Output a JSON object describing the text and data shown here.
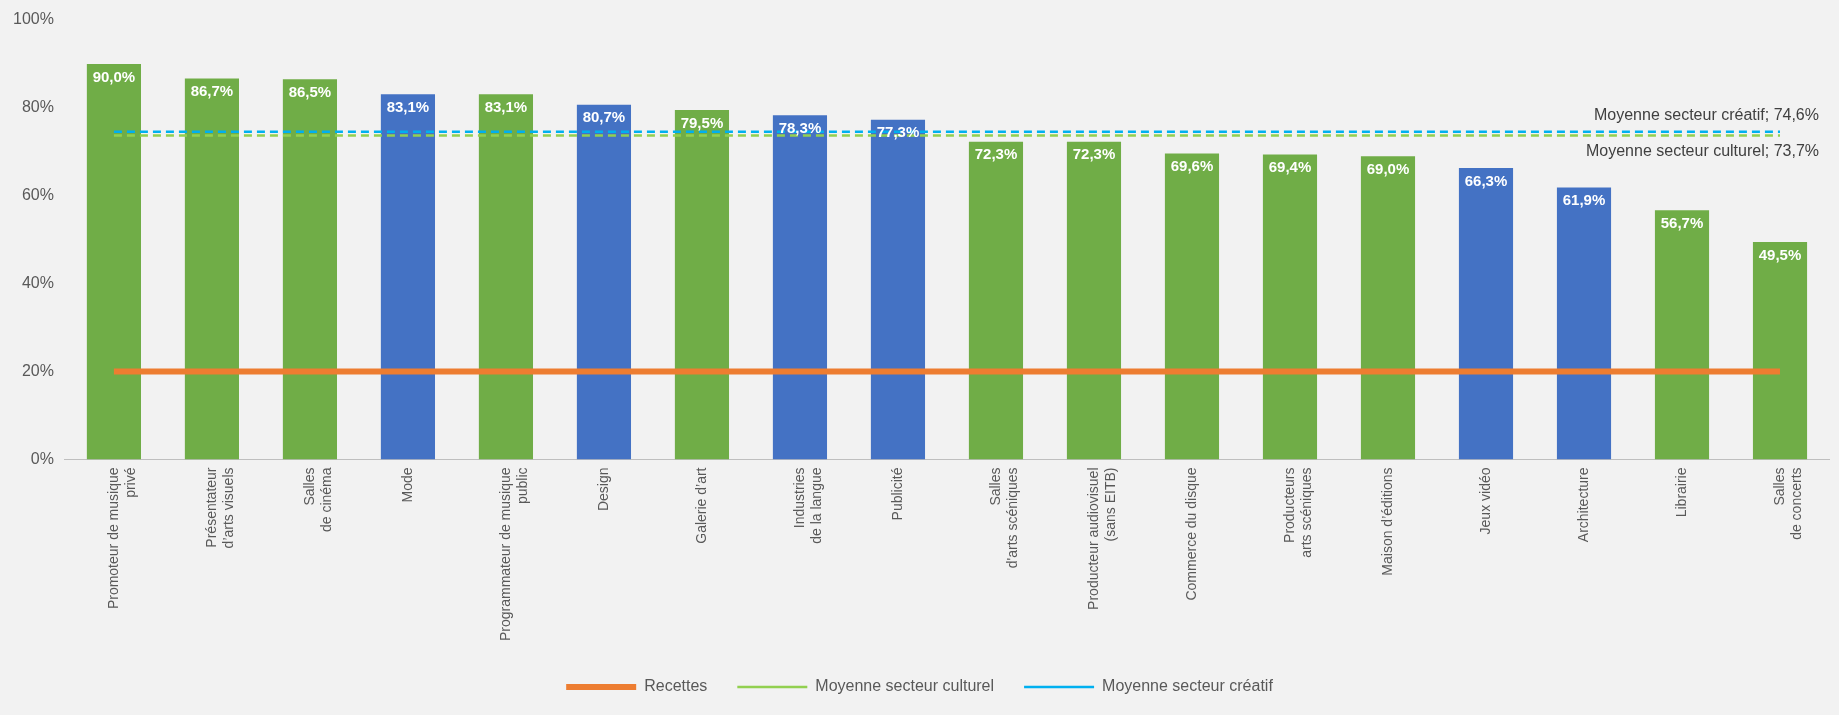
{
  "chart_data": {
    "type": "bar",
    "categories": [
      "Promoteur de musique\nprivé",
      "Présentateur\nd’arts visuels",
      "Salles\nde cinéma",
      "Mode",
      "Programmateur de musique\npublic",
      "Design",
      "Galerie d’art",
      "Industries\nde la langue",
      "Publicité",
      "Salles\nd'arts scéniques",
      "Producteur audiovisuel\n(sans EITB)",
      "Commerce du disque",
      "Producteurs\narts scéniques",
      "Maison d’éditions",
      "Jeux vidéo",
      "Architecture",
      "Librairie",
      "Salles\nde concerts"
    ],
    "series": [
      {
        "colors": [
          "#70ad47",
          "#70ad47",
          "#70ad47",
          "#4472c4",
          "#70ad47",
          "#4472c4",
          "#70ad47",
          "#4472c4",
          "#4472c4",
          "#70ad47",
          "#70ad47",
          "#70ad47",
          "#70ad47",
          "#70ad47",
          "#4472c4",
          "#4472c4",
          "#70ad47",
          "#70ad47"
        ],
        "values": [
          90.0,
          86.7,
          86.5,
          83.1,
          83.1,
          80.7,
          79.5,
          78.3,
          77.3,
          72.3,
          72.3,
          69.6,
          69.4,
          69.0,
          66.3,
          61.9,
          56.7,
          49.5
        ],
        "value_labels": [
          "90,0%",
          "86,7%",
          "86,5%",
          "83,1%",
          "83,1%",
          "80,7%",
          "79,5%",
          "78,3%",
          "77,3%",
          "72,3%",
          "72,3%",
          "69,6%",
          "69,4%",
          "69,0%",
          "66,3%",
          "61,9%",
          "56,7%",
          "49,5%"
        ]
      },
      {
        "type": "line",
        "name": "Recettes",
        "color": "#ed7d31",
        "line_style": "solid",
        "values": [
          20,
          20,
          20,
          20,
          20,
          20,
          20,
          20,
          20,
          20,
          20,
          20,
          20,
          20,
          20,
          20,
          20,
          20
        ]
      },
      {
        "type": "line",
        "name": "Moyenne secteur culturel",
        "color": "#92d050",
        "line_style": "dashed",
        "values": [
          73.7,
          73.7,
          73.7,
          73.7,
          73.7,
          73.7,
          73.7,
          73.7,
          73.7,
          73.7,
          73.7,
          73.7,
          73.7,
          73.7,
          73.7,
          73.7,
          73.7,
          73.7
        ]
      },
      {
        "type": "line",
        "name": "Moyenne secteur créatif",
        "color": "#00b0f0",
        "line_style": "dashed",
        "values": [
          74.6,
          74.6,
          74.6,
          74.6,
          74.6,
          74.6,
          74.6,
          74.6,
          74.6,
          74.6,
          74.6,
          74.6,
          74.6,
          74.6,
          74.6,
          74.6,
          74.6,
          74.6
        ]
      }
    ],
    "annotations": [
      {
        "text": "Moyenne secteur créatif; 74,6%",
        "y": 74.6
      },
      {
        "text": "Moyenne secteur culturel; 73,7%",
        "y": 73.7
      }
    ],
    "ylim": [
      0,
      100
    ],
    "yticks": [
      {
        "value": 0,
        "label": "0%"
      },
      {
        "value": 20,
        "label": "20%"
      },
      {
        "value": 40,
        "label": "40%"
      },
      {
        "value": 60,
        "label": "60%"
      },
      {
        "value": 80,
        "label": "80%"
      },
      {
        "value": 100,
        "label": "100%"
      }
    ],
    "grid": false,
    "legend": "bottom",
    "marker": "none"
  }
}
